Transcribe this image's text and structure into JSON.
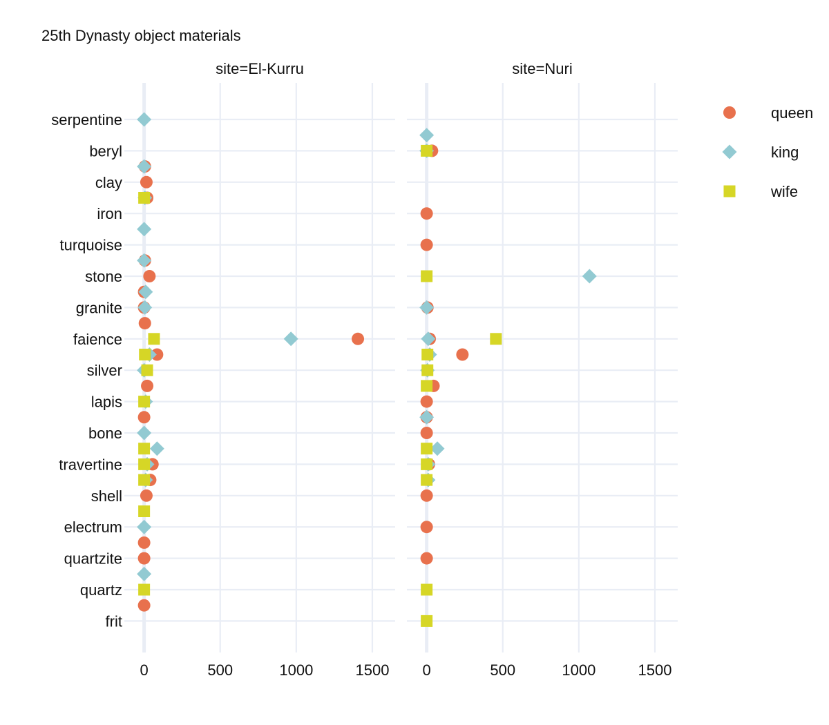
{
  "chart_data": {
    "type": "scatter",
    "title": "25th Dynasty object materials",
    "xlabel": "",
    "ylabel": "",
    "xlim": [
      -130,
      1650
    ],
    "xticks": [
      0,
      500,
      1000,
      1500
    ],
    "grid": true,
    "legend_position": "right",
    "categories": [
      "serpentine",
      "beryl",
      "clay",
      "iron",
      "turquoise",
      "stone",
      "granite",
      "faience",
      "silver",
      "lapis",
      "bone",
      "travertine",
      "shell",
      "electrum",
      "quartzite",
      "quartz",
      "frit"
    ],
    "series": [
      {
        "name": "queen",
        "shape": "circle",
        "color": "#E8714D"
      },
      {
        "name": "king",
        "shape": "diamond",
        "color": "#92CAD2"
      },
      {
        "name": "wife",
        "shape": "square",
        "color": "#D6D626"
      }
    ],
    "facets": [
      {
        "label": "site=El-Kurru",
        "points": [
          {
            "cat": "serpentine",
            "off": 0,
            "series": "king",
            "x": 0
          },
          {
            "cat": "beryl",
            "off": 0.5,
            "series": "queen",
            "x": 5
          },
          {
            "cat": "beryl",
            "off": 0.5,
            "series": "king",
            "x": 0
          },
          {
            "cat": "clay",
            "off": 0,
            "series": "queen",
            "x": 15
          },
          {
            "cat": "clay",
            "off": 0.5,
            "series": "queen",
            "x": 20
          },
          {
            "cat": "clay",
            "off": 0.5,
            "series": "king",
            "x": 5
          },
          {
            "cat": "clay",
            "off": 0.5,
            "series": "wife",
            "x": 0
          },
          {
            "cat": "iron",
            "off": 0.5,
            "series": "king",
            "x": 0
          },
          {
            "cat": "turquoise",
            "off": 0.5,
            "series": "queen",
            "x": 5
          },
          {
            "cat": "turquoise",
            "off": 0.5,
            "series": "king",
            "x": 0
          },
          {
            "cat": "stone",
            "off": 0,
            "series": "queen",
            "x": 35
          },
          {
            "cat": "stone",
            "off": 0.5,
            "series": "queen",
            "x": 0
          },
          {
            "cat": "stone",
            "off": 0.5,
            "series": "king",
            "x": 10
          },
          {
            "cat": "granite",
            "off": 0,
            "series": "queen",
            "x": 0
          },
          {
            "cat": "granite",
            "off": 0,
            "series": "king",
            "x": 5
          },
          {
            "cat": "granite",
            "off": 0.5,
            "series": "queen",
            "x": 5
          },
          {
            "cat": "faience",
            "off": 0,
            "series": "queen",
            "x": 1405
          },
          {
            "cat": "faience",
            "off": 0,
            "series": "king",
            "x": 965
          },
          {
            "cat": "faience",
            "off": 0,
            "series": "wife",
            "x": 65
          },
          {
            "cat": "faience",
            "off": 0.5,
            "series": "queen",
            "x": 85
          },
          {
            "cat": "faience",
            "off": 0.5,
            "series": "king",
            "x": 35
          },
          {
            "cat": "faience",
            "off": 0.5,
            "series": "wife",
            "x": 5
          },
          {
            "cat": "silver",
            "off": 0,
            "series": "king",
            "x": 0
          },
          {
            "cat": "silver",
            "off": 0,
            "series": "wife",
            "x": 20
          },
          {
            "cat": "silver",
            "off": 0.5,
            "series": "queen",
            "x": 20
          },
          {
            "cat": "lapis",
            "off": 0,
            "series": "king",
            "x": 10
          },
          {
            "cat": "lapis",
            "off": 0,
            "series": "wife",
            "x": 0
          },
          {
            "cat": "lapis",
            "off": 0.5,
            "series": "queen",
            "x": 0
          },
          {
            "cat": "bone",
            "off": 0,
            "series": "king",
            "x": 0
          },
          {
            "cat": "bone",
            "off": 0.5,
            "series": "king",
            "x": 85
          },
          {
            "cat": "bone",
            "off": 0.5,
            "series": "wife",
            "x": 0
          },
          {
            "cat": "travertine",
            "off": 0,
            "series": "queen",
            "x": 55
          },
          {
            "cat": "travertine",
            "off": 0,
            "series": "king",
            "x": 20
          },
          {
            "cat": "travertine",
            "off": 0,
            "series": "wife",
            "x": 0
          },
          {
            "cat": "travertine",
            "off": 0.5,
            "series": "queen",
            "x": 40
          },
          {
            "cat": "travertine",
            "off": 0.5,
            "series": "king",
            "x": 10
          },
          {
            "cat": "travertine",
            "off": 0.5,
            "series": "wife",
            "x": 0
          },
          {
            "cat": "shell",
            "off": 0,
            "series": "queen",
            "x": 15
          },
          {
            "cat": "shell",
            "off": 0.5,
            "series": "wife",
            "x": 0
          },
          {
            "cat": "electrum",
            "off": 0,
            "series": "king",
            "x": 0
          },
          {
            "cat": "electrum",
            "off": 0.5,
            "series": "queen",
            "x": 0
          },
          {
            "cat": "quartzite",
            "off": 0,
            "series": "queen",
            "x": 0
          },
          {
            "cat": "quartzite",
            "off": 0.5,
            "series": "king",
            "x": 0
          },
          {
            "cat": "quartz",
            "off": 0,
            "series": "wife",
            "x": 0
          },
          {
            "cat": "quartz",
            "off": 0.5,
            "series": "queen",
            "x": 0
          }
        ]
      },
      {
        "label": "site=Nuri",
        "points": [
          {
            "cat": "serpentine",
            "off": 0.5,
            "series": "king",
            "x": 0
          },
          {
            "cat": "beryl",
            "off": 0,
            "series": "queen",
            "x": 35
          },
          {
            "cat": "beryl",
            "off": 0,
            "series": "king",
            "x": 0
          },
          {
            "cat": "beryl",
            "off": 0,
            "series": "wife",
            "x": 0
          },
          {
            "cat": "iron",
            "off": 0,
            "series": "queen",
            "x": 0
          },
          {
            "cat": "turquoise",
            "off": 0,
            "series": "queen",
            "x": 0
          },
          {
            "cat": "stone",
            "off": 0,
            "series": "king",
            "x": 1070
          },
          {
            "cat": "stone",
            "off": 0,
            "series": "wife",
            "x": 0
          },
          {
            "cat": "granite",
            "off": 0,
            "series": "queen",
            "x": 5
          },
          {
            "cat": "granite",
            "off": 0,
            "series": "king",
            "x": 0
          },
          {
            "cat": "faience",
            "off": 0,
            "series": "queen",
            "x": 20
          },
          {
            "cat": "faience",
            "off": 0,
            "series": "king",
            "x": 10
          },
          {
            "cat": "faience",
            "off": 0,
            "series": "wife",
            "x": 455
          },
          {
            "cat": "faience",
            "off": 0.5,
            "series": "queen",
            "x": 235
          },
          {
            "cat": "faience",
            "off": 0.5,
            "series": "king",
            "x": 20
          },
          {
            "cat": "faience",
            "off": 0.5,
            "series": "wife",
            "x": 5
          },
          {
            "cat": "silver",
            "off": 0,
            "series": "king",
            "x": 5
          },
          {
            "cat": "silver",
            "off": 0,
            "series": "wife",
            "x": 5
          },
          {
            "cat": "silver",
            "off": 0.5,
            "series": "queen",
            "x": 45
          },
          {
            "cat": "silver",
            "off": 0.5,
            "series": "wife",
            "x": 0
          },
          {
            "cat": "lapis",
            "off": 0,
            "series": "queen",
            "x": 0
          },
          {
            "cat": "lapis",
            "off": 0.5,
            "series": "queen",
            "x": 0
          },
          {
            "cat": "lapis",
            "off": 0.5,
            "series": "king",
            "x": 0
          },
          {
            "cat": "bone",
            "off": 0,
            "series": "queen",
            "x": 0
          },
          {
            "cat": "bone",
            "off": 0.5,
            "series": "king",
            "x": 70
          },
          {
            "cat": "bone",
            "off": 0.5,
            "series": "wife",
            "x": 0
          },
          {
            "cat": "travertine",
            "off": 0,
            "series": "queen",
            "x": 15
          },
          {
            "cat": "travertine",
            "off": 0,
            "series": "king",
            "x": 10
          },
          {
            "cat": "travertine",
            "off": 0,
            "series": "wife",
            "x": 0
          },
          {
            "cat": "travertine",
            "off": 0.5,
            "series": "king",
            "x": 10
          },
          {
            "cat": "travertine",
            "off": 0.5,
            "series": "wife",
            "x": 0
          },
          {
            "cat": "shell",
            "off": 0,
            "series": "queen",
            "x": 0
          },
          {
            "cat": "electrum",
            "off": 0,
            "series": "queen",
            "x": 0
          },
          {
            "cat": "quartzite",
            "off": 0,
            "series": "queen",
            "x": 0
          },
          {
            "cat": "quartz",
            "off": 0,
            "series": "wife",
            "x": 0
          },
          {
            "cat": "frit",
            "off": 0,
            "series": "wife",
            "x": 0
          }
        ]
      }
    ]
  }
}
